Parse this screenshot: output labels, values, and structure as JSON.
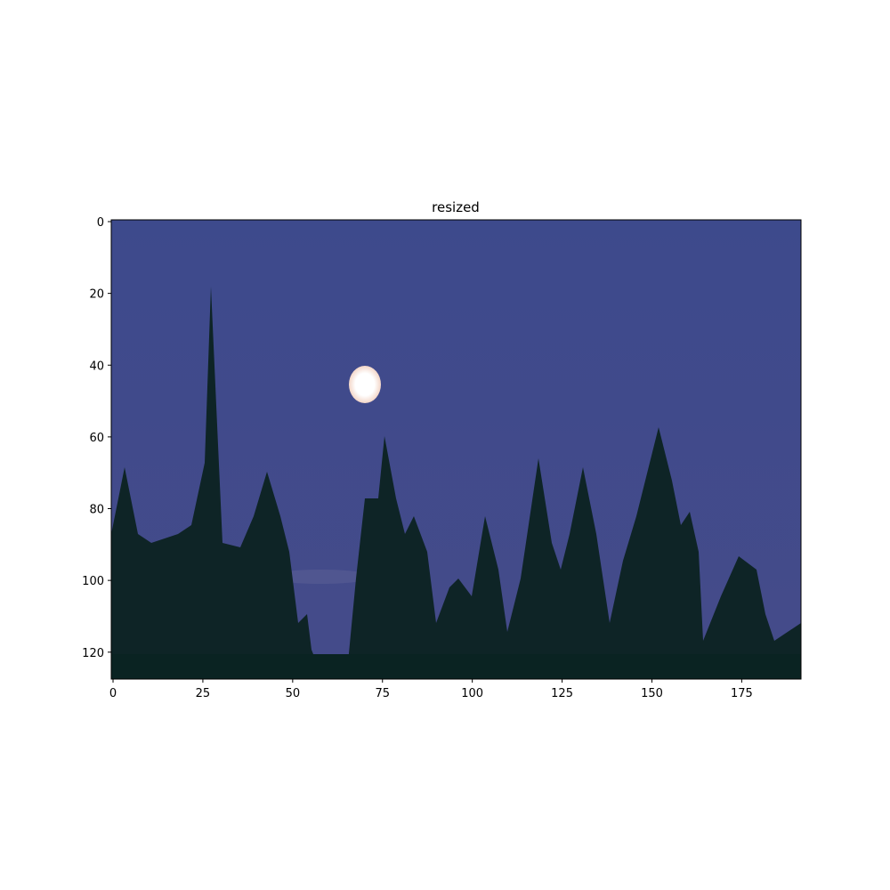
{
  "chart_data": {
    "type": "image",
    "title": "resized",
    "xlim": [
      -0.5,
      191.5
    ],
    "ylim": [
      127.5,
      -0.5
    ],
    "xticks": [
      0,
      25,
      50,
      75,
      100,
      125,
      150,
      175
    ],
    "yticks": [
      0,
      20,
      40,
      60,
      80,
      100,
      120
    ]
  }
}
